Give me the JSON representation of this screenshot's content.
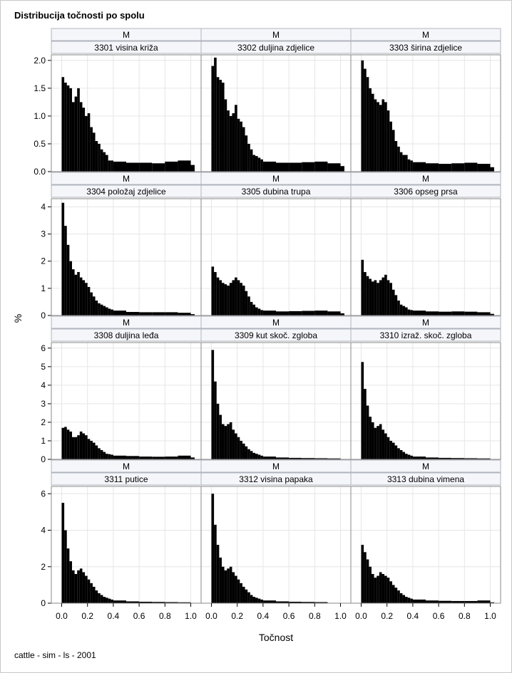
{
  "chart_data": {
    "type": "bar",
    "title": "Distribucija točnosti po spolu",
    "xlabel": "Točnost",
    "ylabel": "%",
    "footnote": "cattle - sim - ls - 2001",
    "xlim": [
      -0.08,
      1.08
    ],
    "xticks": [
      "0.0",
      "0.2",
      "0.4",
      "0.6",
      "0.8",
      "1.0"
    ],
    "grid": true,
    "legend": "none",
    "bar_color": "#000000",
    "rows": [
      {
        "ylim": [
          0,
          2.1
        ],
        "yticks": [
          "0.0",
          "0.5",
          "1.0",
          "1.5",
          "2.0"
        ]
      },
      {
        "ylim": [
          0,
          4.3
        ],
        "yticks": [
          "0",
          "1",
          "2",
          "3",
          "4"
        ]
      },
      {
        "ylim": [
          0,
          6.3
        ],
        "yticks": [
          "0",
          "1",
          "2",
          "3",
          "4",
          "5",
          "6"
        ]
      },
      {
        "ylim": [
          0,
          6.4
        ],
        "yticks": [
          "0",
          "2",
          "4",
          "6"
        ]
      }
    ],
    "panels": [
      {
        "sex": "M",
        "trait": "3301 visina križa",
        "x": [
          0.01,
          0.03,
          0.05,
          0.07,
          0.09,
          0.11,
          0.13,
          0.15,
          0.17,
          0.19,
          0.21,
          0.23,
          0.25,
          0.27,
          0.29,
          0.31,
          0.33,
          0.35,
          0.37,
          0.39,
          0.45,
          0.55,
          0.65,
          0.75,
          0.85,
          0.95,
          0.98
        ],
        "values": [
          1.7,
          1.6,
          1.55,
          1.5,
          1.25,
          1.35,
          1.5,
          1.25,
          1.15,
          1.0,
          1.05,
          0.8,
          0.7,
          0.55,
          0.5,
          0.4,
          0.35,
          0.3,
          0.2,
          0.2,
          0.18,
          0.16,
          0.16,
          0.15,
          0.18,
          0.2,
          0.12
        ]
      },
      {
        "sex": "M",
        "trait": "3302 duljina zdjelice",
        "x": [
          0.01,
          0.03,
          0.05,
          0.07,
          0.09,
          0.11,
          0.13,
          0.15,
          0.17,
          0.19,
          0.21,
          0.23,
          0.25,
          0.27,
          0.29,
          0.31,
          0.33,
          0.35,
          0.37,
          0.39,
          0.45,
          0.55,
          0.65,
          0.75,
          0.85,
          0.95,
          0.98
        ],
        "values": [
          1.9,
          2.05,
          1.7,
          1.65,
          1.6,
          1.3,
          1.1,
          1.0,
          1.05,
          1.2,
          0.95,
          0.9,
          0.8,
          0.65,
          0.5,
          0.4,
          0.3,
          0.28,
          0.25,
          0.22,
          0.18,
          0.16,
          0.16,
          0.17,
          0.18,
          0.15,
          0.1
        ]
      },
      {
        "sex": "M",
        "trait": "3303 širina zdjelice",
        "x": [
          0.01,
          0.03,
          0.05,
          0.07,
          0.09,
          0.11,
          0.13,
          0.15,
          0.17,
          0.19,
          0.21,
          0.23,
          0.25,
          0.27,
          0.29,
          0.31,
          0.33,
          0.35,
          0.37,
          0.39,
          0.45,
          0.55,
          0.65,
          0.75,
          0.85,
          0.95,
          0.98
        ],
        "values": [
          2.0,
          1.85,
          1.7,
          1.5,
          1.4,
          1.3,
          1.25,
          1.2,
          1.3,
          1.25,
          1.1,
          0.9,
          0.75,
          0.55,
          0.45,
          0.35,
          0.3,
          0.3,
          0.22,
          0.2,
          0.17,
          0.15,
          0.14,
          0.15,
          0.16,
          0.14,
          0.08
        ]
      },
      {
        "sex": "M",
        "trait": "3304 položaj zdjelice",
        "x": [
          0.01,
          0.03,
          0.05,
          0.07,
          0.09,
          0.11,
          0.13,
          0.15,
          0.17,
          0.19,
          0.21,
          0.23,
          0.25,
          0.27,
          0.29,
          0.31,
          0.33,
          0.35,
          0.37,
          0.39,
          0.45,
          0.55,
          0.65,
          0.75,
          0.85,
          0.95,
          0.98
        ],
        "values": [
          4.15,
          3.3,
          2.6,
          2.0,
          1.7,
          1.5,
          1.6,
          1.4,
          1.3,
          1.2,
          1.05,
          0.85,
          0.7,
          0.55,
          0.45,
          0.4,
          0.35,
          0.3,
          0.25,
          0.22,
          0.18,
          0.13,
          0.12,
          0.12,
          0.12,
          0.1,
          0.05
        ]
      },
      {
        "sex": "M",
        "trait": "3305 dubina trupa",
        "x": [
          0.01,
          0.03,
          0.05,
          0.07,
          0.09,
          0.11,
          0.13,
          0.15,
          0.17,
          0.19,
          0.21,
          0.23,
          0.25,
          0.27,
          0.29,
          0.31,
          0.33,
          0.35,
          0.37,
          0.39,
          0.45,
          0.55,
          0.65,
          0.75,
          0.85,
          0.95,
          0.98
        ],
        "values": [
          1.8,
          1.6,
          1.4,
          1.3,
          1.2,
          1.15,
          1.1,
          1.2,
          1.3,
          1.4,
          1.3,
          1.2,
          1.1,
          0.9,
          0.7,
          0.5,
          0.4,
          0.3,
          0.25,
          0.2,
          0.18,
          0.15,
          0.16,
          0.17,
          0.18,
          0.15,
          0.08
        ]
      },
      {
        "sex": "M",
        "trait": "3306 opseg prsa",
        "x": [
          0.01,
          0.03,
          0.05,
          0.07,
          0.09,
          0.11,
          0.13,
          0.15,
          0.17,
          0.19,
          0.21,
          0.23,
          0.25,
          0.27,
          0.29,
          0.31,
          0.33,
          0.35,
          0.37,
          0.39,
          0.45,
          0.55,
          0.65,
          0.75,
          0.85,
          0.95,
          0.98
        ],
        "values": [
          2.05,
          1.6,
          1.45,
          1.35,
          1.25,
          1.3,
          1.2,
          1.3,
          1.4,
          1.5,
          1.3,
          1.2,
          0.95,
          0.75,
          0.55,
          0.4,
          0.35,
          0.3,
          0.22,
          0.2,
          0.18,
          0.15,
          0.14,
          0.15,
          0.14,
          0.12,
          0.06
        ]
      },
      {
        "sex": "M",
        "trait": "3308 duljina leđa",
        "x": [
          0.01,
          0.03,
          0.05,
          0.07,
          0.09,
          0.11,
          0.13,
          0.15,
          0.17,
          0.19,
          0.21,
          0.23,
          0.25,
          0.27,
          0.29,
          0.31,
          0.33,
          0.35,
          0.37,
          0.39,
          0.45,
          0.55,
          0.65,
          0.75,
          0.85,
          0.95,
          0.98
        ],
        "values": [
          1.7,
          1.75,
          1.6,
          1.5,
          1.2,
          1.2,
          1.3,
          1.5,
          1.4,
          1.3,
          1.1,
          1.0,
          0.9,
          0.75,
          0.6,
          0.5,
          0.4,
          0.3,
          0.28,
          0.25,
          0.2,
          0.18,
          0.15,
          0.14,
          0.15,
          0.2,
          0.1
        ]
      },
      {
        "sex": "M",
        "trait": "3309 kut skoč. zgloba",
        "x": [
          0.01,
          0.03,
          0.05,
          0.07,
          0.09,
          0.11,
          0.13,
          0.15,
          0.17,
          0.19,
          0.21,
          0.23,
          0.25,
          0.27,
          0.29,
          0.31,
          0.33,
          0.35,
          0.37,
          0.39,
          0.45,
          0.55,
          0.65,
          0.75,
          0.85,
          0.95,
          0.98
        ],
        "values": [
          5.9,
          4.2,
          3.0,
          2.4,
          1.9,
          1.8,
          1.9,
          2.0,
          1.6,
          1.4,
          1.2,
          1.0,
          0.85,
          0.7,
          0.55,
          0.45,
          0.35,
          0.3,
          0.25,
          0.2,
          0.15,
          0.1,
          0.08,
          0.07,
          0.06,
          0.05,
          0.0
        ]
      },
      {
        "sex": "M",
        "trait": "3310 izraž. skoč. zgloba",
        "x": [
          0.01,
          0.03,
          0.05,
          0.07,
          0.09,
          0.11,
          0.13,
          0.15,
          0.17,
          0.19,
          0.21,
          0.23,
          0.25,
          0.27,
          0.29,
          0.31,
          0.33,
          0.35,
          0.37,
          0.39,
          0.45,
          0.55,
          0.65,
          0.75,
          0.85,
          0.95,
          0.98
        ],
        "values": [
          5.25,
          3.8,
          2.9,
          2.3,
          2.0,
          1.7,
          1.8,
          1.9,
          1.6,
          1.4,
          1.2,
          1.0,
          0.9,
          0.75,
          0.6,
          0.5,
          0.4,
          0.3,
          0.25,
          0.2,
          0.15,
          0.1,
          0.08,
          0.07,
          0.06,
          0.05,
          0.0
        ]
      },
      {
        "sex": "M",
        "trait": "3311 putice",
        "x": [
          0.01,
          0.03,
          0.05,
          0.07,
          0.09,
          0.11,
          0.13,
          0.15,
          0.17,
          0.19,
          0.21,
          0.23,
          0.25,
          0.27,
          0.29,
          0.31,
          0.33,
          0.35,
          0.37,
          0.39,
          0.45,
          0.55,
          0.65,
          0.75,
          0.85,
          0.95,
          0.98
        ],
        "values": [
          5.5,
          4.0,
          3.0,
          2.3,
          1.8,
          1.6,
          1.8,
          1.9,
          1.7,
          1.5,
          1.3,
          1.1,
          0.9,
          0.7,
          0.55,
          0.45,
          0.35,
          0.3,
          0.25,
          0.2,
          0.15,
          0.1,
          0.08,
          0.07,
          0.06,
          0.05,
          0.0
        ]
      },
      {
        "sex": "M",
        "trait": "3312 visina papaka",
        "x": [
          0.01,
          0.03,
          0.05,
          0.07,
          0.09,
          0.11,
          0.13,
          0.15,
          0.17,
          0.19,
          0.21,
          0.23,
          0.25,
          0.27,
          0.29,
          0.31,
          0.33,
          0.35,
          0.37,
          0.39,
          0.45,
          0.55,
          0.65,
          0.75,
          0.85,
          0.95,
          0.98
        ],
        "values": [
          6.0,
          4.3,
          3.2,
          2.5,
          2.0,
          1.8,
          1.9,
          2.0,
          1.7,
          1.5,
          1.3,
          1.1,
          0.9,
          0.75,
          0.6,
          0.45,
          0.35,
          0.3,
          0.25,
          0.2,
          0.15,
          0.1,
          0.08,
          0.07,
          0.06,
          0.0,
          0.0
        ]
      },
      {
        "sex": "M",
        "trait": "3313 dubina vimena",
        "x": [
          0.01,
          0.03,
          0.05,
          0.07,
          0.09,
          0.11,
          0.13,
          0.15,
          0.17,
          0.19,
          0.21,
          0.23,
          0.25,
          0.27,
          0.29,
          0.31,
          0.33,
          0.35,
          0.37,
          0.39,
          0.45,
          0.55,
          0.65,
          0.75,
          0.85,
          0.95,
          0.98
        ],
        "values": [
          3.2,
          2.8,
          2.4,
          2.0,
          1.6,
          1.4,
          1.5,
          1.7,
          1.6,
          1.5,
          1.4,
          1.2,
          1.0,
          0.85,
          0.7,
          0.55,
          0.45,
          0.35,
          0.3,
          0.25,
          0.2,
          0.15,
          0.13,
          0.12,
          0.12,
          0.15,
          0.05
        ]
      }
    ]
  }
}
